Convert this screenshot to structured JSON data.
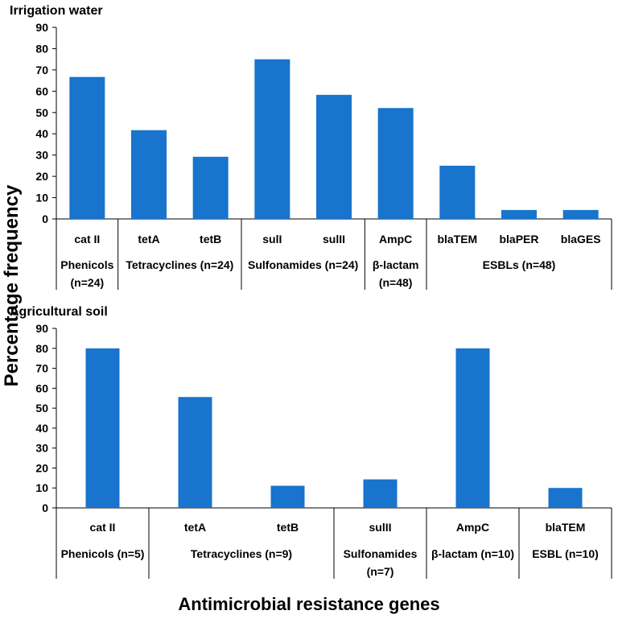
{
  "colors": {
    "bar": "#1874cd",
    "axis": "#000000"
  },
  "ylabel": "Percentage frequency",
  "xlabel": "Antimicrobial resistance genes",
  "chart_data": [
    {
      "type": "bar",
      "title": "Irrigation water",
      "ylim": [
        0,
        90
      ],
      "yticks": [
        0,
        10,
        20,
        30,
        40,
        50,
        60,
        70,
        80,
        90
      ],
      "categories": [
        "cat II",
        "tetA",
        "tetB",
        "sulI",
        "sulII",
        "AmpC",
        "blaTEM",
        "blaPER",
        "blaGES"
      ],
      "values": [
        66.7,
        41.7,
        29.2,
        75.0,
        58.3,
        52.1,
        25.0,
        4.2,
        4.2
      ],
      "groups": [
        {
          "lines": [
            "Phenicols",
            "(n=24)"
          ],
          "span": 1
        },
        {
          "lines": [
            "Tetracyclines (n=24)"
          ],
          "span": 2
        },
        {
          "lines": [
            "Sulfonamides (n=24)"
          ],
          "span": 2
        },
        {
          "lines": [
            "β-lactam",
            "(n=48)"
          ],
          "span": 1
        },
        {
          "lines": [
            "ESBLs (n=48)"
          ],
          "span": 3
        }
      ]
    },
    {
      "type": "bar",
      "title": "Agricultural soil",
      "ylim": [
        0,
        90
      ],
      "yticks": [
        0,
        10,
        20,
        30,
        40,
        50,
        60,
        70,
        80,
        90
      ],
      "categories": [
        "cat II",
        "tetA",
        "tetB",
        "sulII",
        "AmpC",
        "blaTEM"
      ],
      "values": [
        80.0,
        55.6,
        11.1,
        14.3,
        80.0,
        10.0
      ],
      "groups": [
        {
          "lines": [
            "Phenicols  (n=5)"
          ],
          "span": 1
        },
        {
          "lines": [
            "Tetracyclines (n=9)"
          ],
          "span": 2
        },
        {
          "lines": [
            "Sulfonamides",
            "(n=7)"
          ],
          "span": 1
        },
        {
          "lines": [
            "β-lactam (n=10)"
          ],
          "span": 1
        },
        {
          "lines": [
            "ESBL (n=10)"
          ],
          "span": 1
        }
      ]
    }
  ]
}
